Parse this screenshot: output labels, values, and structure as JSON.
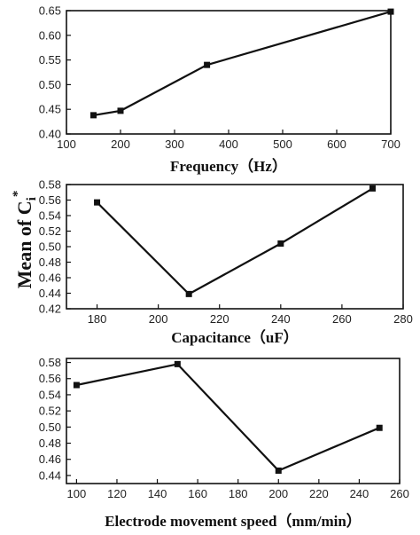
{
  "shared_ylabel": {
    "main": "Mean of C",
    "sub": "i",
    "sup": "*"
  },
  "chart_data": [
    {
      "type": "line",
      "xlabel": "Frequency（Hz）",
      "x": [
        150,
        200,
        360,
        700
      ],
      "values": [
        0.438,
        0.447,
        0.54,
        0.648
      ],
      "xlim": [
        100,
        700
      ],
      "ylim": [
        0.4,
        0.65
      ],
      "xticks": [
        100,
        200,
        300,
        400,
        500,
        600,
        700
      ],
      "yticks": [
        0.4,
        0.45,
        0.5,
        0.55,
        0.6,
        0.65
      ],
      "ydecimals": 2,
      "grid": false
    },
    {
      "type": "line",
      "xlabel": "Capacitance（uF）",
      "x": [
        180,
        210,
        240,
        270
      ],
      "values": [
        0.557,
        0.439,
        0.504,
        0.575
      ],
      "xlim": [
        170,
        280
      ],
      "ylim": [
        0.42,
        0.58
      ],
      "xticks": [
        180,
        200,
        220,
        240,
        260,
        280
      ],
      "yticks": [
        0.42,
        0.44,
        0.46,
        0.48,
        0.5,
        0.52,
        0.54,
        0.56,
        0.58
      ],
      "ydecimals": 2,
      "grid": false
    },
    {
      "type": "line",
      "xlabel": "Electrode movement speed（mm/min）",
      "x": [
        100,
        150,
        200,
        250
      ],
      "values": [
        0.552,
        0.578,
        0.446,
        0.499
      ],
      "xlim": [
        95,
        260
      ],
      "ylim": [
        0.43,
        0.585
      ],
      "xticks": [
        100,
        120,
        140,
        160,
        180,
        200,
        220,
        240,
        260
      ],
      "yticks": [
        0.44,
        0.46,
        0.48,
        0.5,
        0.52,
        0.54,
        0.56,
        0.58
      ],
      "ydecimals": 2,
      "grid": false
    }
  ]
}
